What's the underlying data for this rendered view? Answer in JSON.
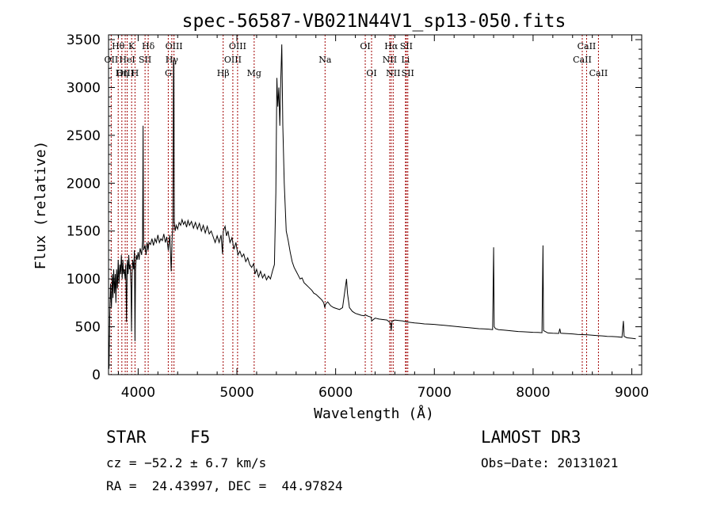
{
  "chart_data": {
    "type": "line",
    "title": "spec-56587-VB021N44V1_sp13-050.fits",
    "xlabel": "Wavelength (Å)",
    "ylabel": "Flux (relative)",
    "xlim": [
      3700,
      9100
    ],
    "ylim": [
      0,
      3550
    ],
    "xticks": [
      4000,
      5000,
      6000,
      7000,
      8000,
      9000
    ],
    "yticks": [
      0,
      500,
      1000,
      1500,
      2000,
      2500,
      3000,
      3500
    ],
    "grid": false,
    "series": [
      {
        "name": "flux",
        "points": [
          [
            3700,
            350
          ],
          [
            3705,
            60
          ],
          [
            3712,
            600
          ],
          [
            3720,
            950
          ],
          [
            3730,
            700
          ],
          [
            3738,
            1050
          ],
          [
            3745,
            800
          ],
          [
            3752,
            1100
          ],
          [
            3760,
            850
          ],
          [
            3768,
            1050
          ],
          [
            3775,
            750
          ],
          [
            3782,
            1100
          ],
          [
            3790,
            900
          ],
          [
            3798,
            1200
          ],
          [
            3806,
            950
          ],
          [
            3815,
            1150
          ],
          [
            3822,
            1050
          ],
          [
            3830,
            1250
          ],
          [
            3838,
            1000
          ],
          [
            3845,
            1200
          ],
          [
            3852,
            1050
          ],
          [
            3860,
            1100
          ],
          [
            3868,
            1000
          ],
          [
            3875,
            1150
          ],
          [
            3882,
            550
          ],
          [
            3890,
            1200
          ],
          [
            3898,
            1050
          ],
          [
            3905,
            1250
          ],
          [
            3912,
            1100
          ],
          [
            3920,
            1150
          ],
          [
            3928,
            900
          ],
          [
            3933,
            450
          ],
          [
            3938,
            1050
          ],
          [
            3945,
            1200
          ],
          [
            3955,
            1100
          ],
          [
            3962,
            1300
          ],
          [
            3968,
            350
          ],
          [
            3974,
            1100
          ],
          [
            3982,
            1250
          ],
          [
            3990,
            1200
          ],
          [
            4000,
            1280
          ],
          [
            4010,
            1200
          ],
          [
            4020,
            1320
          ],
          [
            4035,
            1250
          ],
          [
            4045,
            1400
          ],
          [
            4050,
            2600
          ],
          [
            4055,
            1300
          ],
          [
            4070,
            1350
          ],
          [
            4080,
            1250
          ],
          [
            4090,
            1380
          ],
          [
            4100,
            1300
          ],
          [
            4110,
            1380
          ],
          [
            4125,
            1360
          ],
          [
            4140,
            1420
          ],
          [
            4155,
            1350
          ],
          [
            4170,
            1420
          ],
          [
            4185,
            1380
          ],
          [
            4200,
            1460
          ],
          [
            4215,
            1380
          ],
          [
            4230,
            1420
          ],
          [
            4245,
            1400
          ],
          [
            4260,
            1470
          ],
          [
            4275,
            1380
          ],
          [
            4290,
            1440
          ],
          [
            4305,
            1300
          ],
          [
            4320,
            1460
          ],
          [
            4330,
            1220
          ],
          [
            4335,
            1080
          ],
          [
            4345,
            1450
          ],
          [
            4352,
            1550
          ],
          [
            4358,
            3300
          ],
          [
            4362,
            3250
          ],
          [
            4366,
            1600
          ],
          [
            4375,
            1500
          ],
          [
            4385,
            1560
          ],
          [
            4400,
            1520
          ],
          [
            4415,
            1590
          ],
          [
            4430,
            1560
          ],
          [
            4445,
            1620
          ],
          [
            4460,
            1570
          ],
          [
            4475,
            1600
          ],
          [
            4490,
            1540
          ],
          [
            4505,
            1610
          ],
          [
            4520,
            1560
          ],
          [
            4540,
            1600
          ],
          [
            4560,
            1530
          ],
          [
            4580,
            1590
          ],
          [
            4600,
            1520
          ],
          [
            4620,
            1580
          ],
          [
            4640,
            1500
          ],
          [
            4660,
            1560
          ],
          [
            4680,
            1480
          ],
          [
            4700,
            1550
          ],
          [
            4720,
            1470
          ],
          [
            4740,
            1500
          ],
          [
            4760,
            1440
          ],
          [
            4780,
            1380
          ],
          [
            4800,
            1450
          ],
          [
            4820,
            1380
          ],
          [
            4840,
            1460
          ],
          [
            4855,
            1260
          ],
          [
            4862,
            1500
          ],
          [
            4880,
            1550
          ],
          [
            4895,
            1450
          ],
          [
            4910,
            1500
          ],
          [
            4930,
            1380
          ],
          [
            4950,
            1430
          ],
          [
            4970,
            1310
          ],
          [
            4990,
            1380
          ],
          [
            5010,
            1250
          ],
          [
            5030,
            1290
          ],
          [
            5050,
            1230
          ],
          [
            5070,
            1260
          ],
          [
            5090,
            1180
          ],
          [
            5110,
            1220
          ],
          [
            5130,
            1150
          ],
          [
            5150,
            1120
          ],
          [
            5170,
            1160
          ],
          [
            5183,
            1050
          ],
          [
            5200,
            1100
          ],
          [
            5220,
            1020
          ],
          [
            5240,
            1080
          ],
          [
            5260,
            1010
          ],
          [
            5280,
            1050
          ],
          [
            5300,
            990
          ],
          [
            5320,
            1030
          ],
          [
            5340,
            1000
          ],
          [
            5360,
            1080
          ],
          [
            5380,
            1150
          ],
          [
            5395,
            1900
          ],
          [
            5405,
            3100
          ],
          [
            5415,
            2800
          ],
          [
            5425,
            3000
          ],
          [
            5435,
            2600
          ],
          [
            5445,
            3100
          ],
          [
            5455,
            3450
          ],
          [
            5465,
            2600
          ],
          [
            5480,
            2000
          ],
          [
            5500,
            1500
          ],
          [
            5520,
            1400
          ],
          [
            5540,
            1280
          ],
          [
            5560,
            1180
          ],
          [
            5580,
            1120
          ],
          [
            5600,
            1080
          ],
          [
            5620,
            1040
          ],
          [
            5640,
            1000
          ],
          [
            5660,
            1010
          ],
          [
            5680,
            960
          ],
          [
            5700,
            940
          ],
          [
            5720,
            920
          ],
          [
            5740,
            900
          ],
          [
            5760,
            880
          ],
          [
            5780,
            850
          ],
          [
            5800,
            840
          ],
          [
            5830,
            810
          ],
          [
            5860,
            780
          ],
          [
            5880,
            750
          ],
          [
            5890,
            700
          ],
          [
            5900,
            740
          ],
          [
            5920,
            760
          ],
          [
            5950,
            720
          ],
          [
            5980,
            700
          ],
          [
            6010,
            690
          ],
          [
            6040,
            680
          ],
          [
            6070,
            700
          ],
          [
            6090,
            850
          ],
          [
            6110,
            1000
          ],
          [
            6120,
            850
          ],
          [
            6140,
            700
          ],
          [
            6170,
            660
          ],
          [
            6200,
            640
          ],
          [
            6230,
            630
          ],
          [
            6260,
            620
          ],
          [
            6290,
            615
          ],
          [
            6300,
            625
          ],
          [
            6330,
            610
          ],
          [
            6360,
            600
          ],
          [
            6365,
            560
          ],
          [
            6400,
            590
          ],
          [
            6440,
            580
          ],
          [
            6480,
            575
          ],
          [
            6520,
            570
          ],
          [
            6555,
            540
          ],
          [
            6563,
            460
          ],
          [
            6572,
            560
          ],
          [
            6600,
            570
          ],
          [
            6640,
            565
          ],
          [
            6680,
            560
          ],
          [
            6720,
            550
          ],
          [
            6760,
            545
          ],
          [
            6800,
            540
          ],
          [
            6850,
            535
          ],
          [
            6900,
            530
          ],
          [
            6950,
            528
          ],
          [
            7000,
            525
          ],
          [
            7050,
            520
          ],
          [
            7100,
            515
          ],
          [
            7150,
            510
          ],
          [
            7200,
            505
          ],
          [
            7250,
            500
          ],
          [
            7300,
            495
          ],
          [
            7350,
            490
          ],
          [
            7400,
            485
          ],
          [
            7450,
            480
          ],
          [
            7500,
            478
          ],
          [
            7550,
            475
          ],
          [
            7590,
            470
          ],
          [
            7600,
            1330
          ],
          [
            7606,
            500
          ],
          [
            7620,
            480
          ],
          [
            7650,
            470
          ],
          [
            7700,
            465
          ],
          [
            7750,
            460
          ],
          [
            7800,
            455
          ],
          [
            7850,
            450
          ],
          [
            7900,
            448
          ],
          [
            7950,
            445
          ],
          [
            8000,
            442
          ],
          [
            8050,
            440
          ],
          [
            8090,
            438
          ],
          [
            8100,
            1350
          ],
          [
            8106,
            460
          ],
          [
            8150,
            435
          ],
          [
            8200,
            432
          ],
          [
            8260,
            430
          ],
          [
            8270,
            480
          ],
          [
            8280,
            432
          ],
          [
            8350,
            428
          ],
          [
            8400,
            425
          ],
          [
            8450,
            420
          ],
          [
            8500,
            418
          ],
          [
            8550,
            415
          ],
          [
            8600,
            412
          ],
          [
            8650,
            408
          ],
          [
            8700,
            405
          ],
          [
            8750,
            400
          ],
          [
            8800,
            398
          ],
          [
            8850,
            395
          ],
          [
            8900,
            390
          ],
          [
            8915,
            560
          ],
          [
            8922,
            400
          ],
          [
            8950,
            385
          ],
          [
            9000,
            380
          ],
          [
            9040,
            375
          ]
        ]
      }
    ],
    "lines": [
      {
        "label": "Hθ",
        "x": 3798,
        "row": 0
      },
      {
        "label": "OII",
        "x": 3727,
        "row": 1
      },
      {
        "label": "OIII",
        "x": 3869,
        "row": 2
      },
      {
        "label": "K",
        "x": 3934,
        "row": 0
      },
      {
        "label": "HeI",
        "x": 3889,
        "row": 1
      },
      {
        "label": "Hη",
        "x": 3835,
        "row": 2
      },
      {
        "label": "Hδ",
        "x": 4102,
        "row": 0
      },
      {
        "label": "SII",
        "x": 4070,
        "row": 1
      },
      {
        "label": "H",
        "x": 3968,
        "row": 2
      },
      {
        "label": "OIII",
        "x": 4363,
        "row": 0
      },
      {
        "label": "Hγ",
        "x": 4341,
        "row": 1
      },
      {
        "label": "G",
        "x": 4305,
        "row": 2
      },
      {
        "label": "OIII",
        "x": 5007,
        "row": 0
      },
      {
        "label": "OIII",
        "x": 4959,
        "row": 1
      },
      {
        "label": "Hβ",
        "x": 4861,
        "row": 2
      },
      {
        "label": "Mg",
        "x": 5175,
        "row": 2
      },
      {
        "label": "Na",
        "x": 5893,
        "row": 1
      },
      {
        "label": "OI",
        "x": 6300,
        "row": 0
      },
      {
        "label": "OI",
        "x": 6364,
        "row": 2
      },
      {
        "label": "Hα",
        "x": 6563,
        "row": 0
      },
      {
        "label": "NII",
        "x": 6548,
        "row": 1
      },
      {
        "label": "NII",
        "x": 6583,
        "row": 2
      },
      {
        "label": "SII",
        "x": 6716,
        "row": 0
      },
      {
        "label": "Li",
        "x": 6708,
        "row": 1
      },
      {
        "label": "SII",
        "x": 6731,
        "row": 2
      },
      {
        "label": "CaII",
        "x": 8542,
        "row": 0
      },
      {
        "label": "CaII",
        "x": 8498,
        "row": 1
      },
      {
        "label": "CaII",
        "x": 8662,
        "row": 2
      }
    ]
  },
  "info": {
    "class": "STAR",
    "subclass": "F5",
    "survey": "LAMOST DR3",
    "cz": "cz = −52.2 ± 6.7 km/s",
    "obsdate": "Obs−Date: 20131021",
    "coords": "RA =  24.43997, DEC =  44.97824"
  },
  "colors": {
    "line_markers": "#a00000",
    "spectrum": "#000000"
  }
}
